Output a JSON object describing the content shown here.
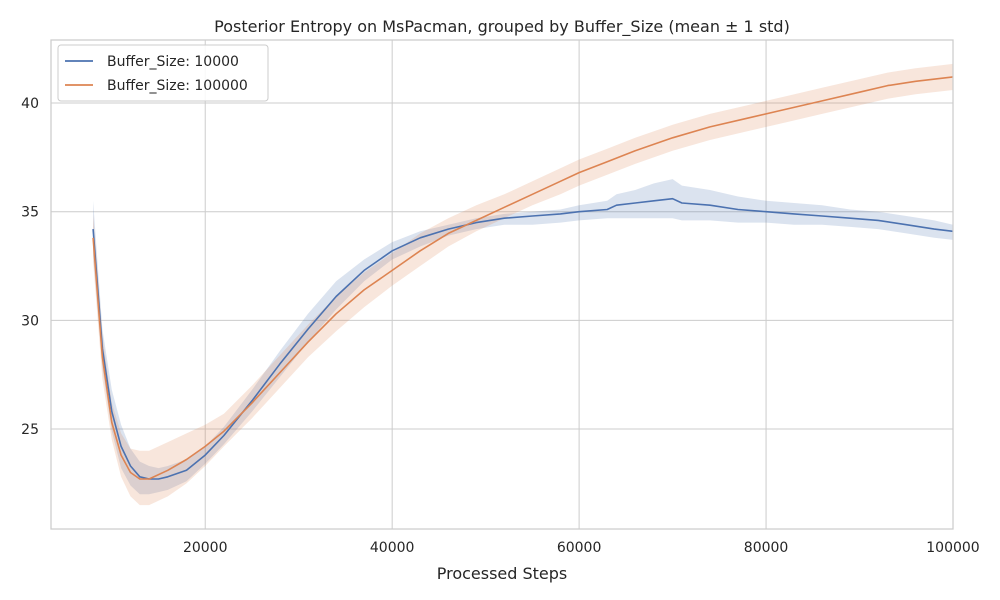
{
  "chart_data": {
    "type": "line",
    "title": "Posterior Entropy on MsPacman, grouped by Buffer_Size (mean ± 1 std)",
    "xlabel": "Processed Steps",
    "ylabel": "",
    "xlim": [
      3500,
      100000
    ],
    "ylim": [
      20.4,
      42.9
    ],
    "xticks": [
      20000,
      40000,
      60000,
      80000,
      100000
    ],
    "xtick_labels": [
      "20000",
      "40000",
      "60000",
      "80000",
      "100000"
    ],
    "yticks": [
      25,
      30,
      35,
      40
    ],
    "ytick_labels": [
      "25",
      "30",
      "35",
      "40"
    ],
    "grid": true,
    "legend_position": "top-left",
    "series": [
      {
        "name": "Buffer_Size: 10000",
        "color": "#4c72b0",
        "x": [
          8000,
          9000,
          10000,
          11000,
          12000,
          13000,
          14000,
          15000,
          16000,
          18000,
          20000,
          22000,
          25000,
          28000,
          31000,
          34000,
          37000,
          40000,
          43000,
          46000,
          49000,
          52000,
          55000,
          58000,
          60000,
          63000,
          64000,
          66000,
          68000,
          70000,
          71000,
          74000,
          77000,
          80000,
          83000,
          86000,
          89000,
          92000,
          95000,
          98000,
          100000
        ],
        "y": [
          34.2,
          28.7,
          25.8,
          24.2,
          23.3,
          22.8,
          22.7,
          22.7,
          22.8,
          23.1,
          23.8,
          24.7,
          26.3,
          28.0,
          29.6,
          31.1,
          32.3,
          33.2,
          33.8,
          34.2,
          34.5,
          34.7,
          34.8,
          34.9,
          35.0,
          35.1,
          35.3,
          35.4,
          35.5,
          35.6,
          35.4,
          35.3,
          35.1,
          35.0,
          34.9,
          34.8,
          34.7,
          34.6,
          34.4,
          34.2,
          34.1
        ],
        "lower": [
          33.0,
          27.8,
          24.9,
          23.2,
          22.4,
          22.0,
          22.0,
          22.1,
          22.2,
          22.6,
          23.4,
          24.3,
          25.8,
          27.4,
          29.0,
          30.5,
          31.8,
          32.8,
          33.4,
          33.9,
          34.2,
          34.4,
          34.4,
          34.5,
          34.6,
          34.7,
          34.7,
          34.7,
          34.7,
          34.7,
          34.6,
          34.6,
          34.5,
          34.5,
          34.4,
          34.4,
          34.3,
          34.2,
          34.0,
          33.8,
          33.7
        ],
        "upper": [
          35.5,
          29.6,
          26.8,
          25.2,
          24.1,
          23.5,
          23.3,
          23.2,
          23.3,
          23.6,
          24.2,
          25.1,
          26.8,
          28.6,
          30.3,
          31.8,
          32.8,
          33.6,
          34.1,
          34.4,
          34.7,
          34.9,
          35.0,
          35.1,
          35.3,
          35.5,
          35.8,
          36.0,
          36.3,
          36.5,
          36.2,
          36.0,
          35.7,
          35.5,
          35.4,
          35.3,
          35.1,
          35.0,
          34.8,
          34.6,
          34.4
        ]
      },
      {
        "name": "Buffer_Size: 100000",
        "color": "#dd8452",
        "x": [
          8000,
          9000,
          10000,
          11000,
          12000,
          13000,
          14000,
          16000,
          18000,
          20000,
          22000,
          25000,
          28000,
          31000,
          34000,
          37000,
          40000,
          43000,
          46000,
          49000,
          52000,
          55000,
          58000,
          60000,
          63000,
          66000,
          70000,
          74000,
          78000,
          82000,
          86000,
          90000,
          93000,
          96000,
          100000
        ],
        "y": [
          33.8,
          28.3,
          25.3,
          23.8,
          23.0,
          22.7,
          22.7,
          23.1,
          23.6,
          24.2,
          24.9,
          26.2,
          27.6,
          29.0,
          30.3,
          31.4,
          32.3,
          33.2,
          34.0,
          34.6,
          35.2,
          35.8,
          36.4,
          36.8,
          37.3,
          37.8,
          38.4,
          38.9,
          39.3,
          39.7,
          40.1,
          40.5,
          40.8,
          41.0,
          41.2
        ],
        "lower": [
          32.7,
          27.3,
          24.5,
          22.8,
          21.9,
          21.5,
          21.5,
          21.9,
          22.5,
          23.3,
          24.2,
          25.5,
          26.9,
          28.3,
          29.5,
          30.6,
          31.6,
          32.5,
          33.4,
          34.1,
          34.7,
          35.3,
          35.8,
          36.2,
          36.7,
          37.2,
          37.8,
          38.3,
          38.7,
          39.1,
          39.5,
          39.9,
          40.2,
          40.4,
          40.6
        ],
        "upper": [
          34.9,
          29.3,
          26.2,
          24.8,
          24.1,
          24.0,
          24.0,
          24.4,
          24.8,
          25.2,
          25.7,
          27.0,
          28.4,
          29.8,
          31.1,
          32.2,
          33.1,
          34.0,
          34.7,
          35.3,
          35.8,
          36.4,
          37.0,
          37.4,
          37.9,
          38.4,
          39.0,
          39.5,
          39.9,
          40.3,
          40.7,
          41.1,
          41.4,
          41.6,
          41.8
        ]
      }
    ]
  }
}
